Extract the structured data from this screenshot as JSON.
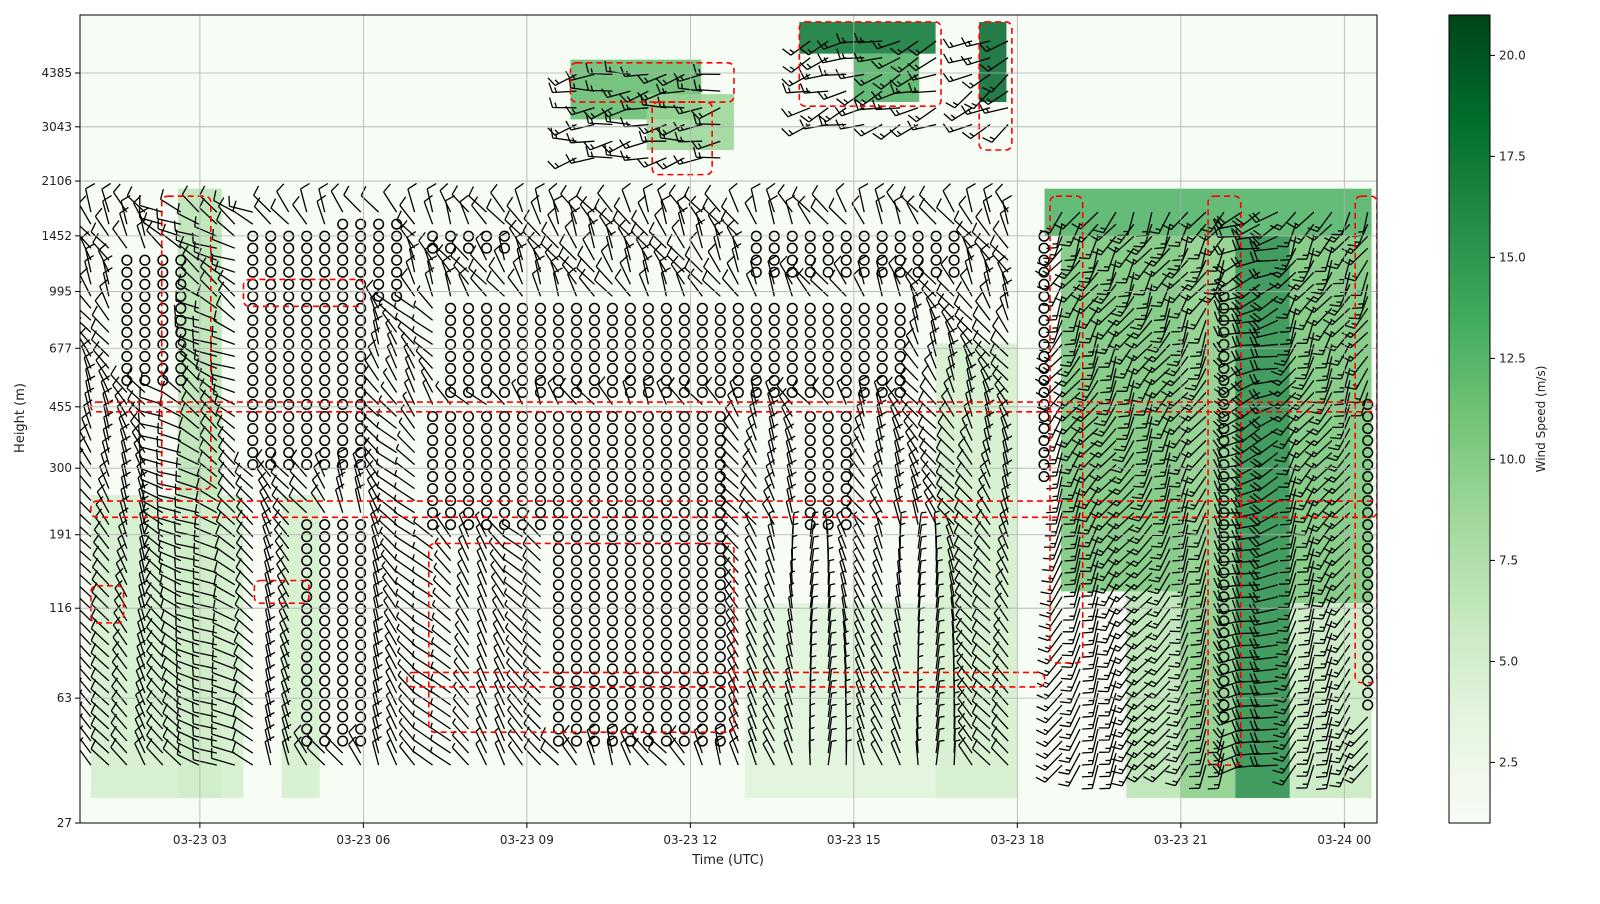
{
  "chart_data": {
    "type": "heatmap",
    "title": "",
    "xlabel": "Time (UTC)",
    "ylabel": "Height (m)",
    "colorbar_label": "Wind Speed (m/s)",
    "colormap": "Greens",
    "colors": {
      "low": "#f7fcf5",
      "high": "#00441b",
      "contour": "#ff0000",
      "barb": "#000000"
    },
    "grid": true,
    "x_range_hours": [
      0.8,
      24.6
    ],
    "x_ticks": [
      {
        "hours": 3,
        "label": "03-23 03"
      },
      {
        "hours": 6,
        "label": "03-23 06"
      },
      {
        "hours": 9,
        "label": "03-23 09"
      },
      {
        "hours": 12,
        "label": "03-23 12"
      },
      {
        "hours": 15,
        "label": "03-23 15"
      },
      {
        "hours": 18,
        "label": "03-23 18"
      },
      {
        "hours": 21,
        "label": "03-23 21"
      },
      {
        "hours": 24,
        "label": "03-24 00"
      }
    ],
    "y_scale": "log",
    "y_range": [
      27,
      6500
    ],
    "y_ticks": [
      27,
      63,
      116,
      191,
      300,
      455,
      677,
      995,
      1452,
      2106,
      3043,
      4385
    ],
    "colorbar_range": [
      1,
      21
    ],
    "colorbar_ticks": [
      2.5,
      5.0,
      7.5,
      10.0,
      12.5,
      15.0,
      17.5,
      20.0
    ],
    "colorbar_tick_labels": [
      "2.5",
      "5.0",
      "7.5",
      "10.0",
      "12.5",
      "15.0",
      "17.5",
      "20.0"
    ],
    "speed_regions": [
      {
        "t0": 2.6,
        "t1": 3.4,
        "h0": 32,
        "h1": 2000,
        "speed": 7
      },
      {
        "t0": 1.0,
        "t1": 3.8,
        "h0": 32,
        "h1": 250,
        "speed": 5
      },
      {
        "t0": 4.5,
        "t1": 5.2,
        "h0": 32,
        "h1": 250,
        "speed": 5
      },
      {
        "t0": 9.8,
        "t1": 12.2,
        "h0": 3200,
        "h1": 4800,
        "speed": 12
      },
      {
        "t0": 11.2,
        "t1": 12.8,
        "h0": 2600,
        "h1": 3800,
        "speed": 9
      },
      {
        "t0": 14.0,
        "t1": 16.5,
        "h0": 5000,
        "h1": 6200,
        "speed": 18
      },
      {
        "t0": 15.0,
        "t1": 16.2,
        "h0": 3600,
        "h1": 5000,
        "speed": 13
      },
      {
        "t0": 17.3,
        "t1": 17.8,
        "h0": 3600,
        "h1": 6200,
        "speed": 19
      },
      {
        "t0": 16.5,
        "t1": 18.0,
        "h0": 32,
        "h1": 700,
        "speed": 5
      },
      {
        "t0": 13.0,
        "t1": 16.5,
        "h0": 32,
        "h1": 120,
        "speed": 4
      },
      {
        "t0": 18.5,
        "t1": 24.5,
        "h0": 1450,
        "h1": 2000,
        "speed": 13
      },
      {
        "t0": 18.8,
        "t1": 21.0,
        "h0": 130,
        "h1": 1450,
        "speed": 11
      },
      {
        "t0": 20.0,
        "t1": 21.0,
        "h0": 32,
        "h1": 130,
        "speed": 7
      },
      {
        "t0": 21.0,
        "t1": 22.0,
        "h0": 32,
        "h1": 1450,
        "speed": 10
      },
      {
        "t0": 22.0,
        "t1": 23.0,
        "h0": 32,
        "h1": 1450,
        "speed": 16
      },
      {
        "t0": 23.0,
        "t1": 24.5,
        "h0": 120,
        "h1": 1450,
        "speed": 11
      },
      {
        "t0": 23.0,
        "t1": 24.5,
        "h0": 32,
        "h1": 120,
        "speed": 6
      }
    ],
    "calm_regions": [
      {
        "t0": 1.5,
        "t1": 2.7,
        "h0": 530,
        "h1": 1250
      },
      {
        "t0": 3.8,
        "t1": 6.0,
        "h0": 300,
        "h1": 1550
      },
      {
        "t0": 5.5,
        "t1": 6.7,
        "h0": 900,
        "h1": 1700
      },
      {
        "t0": 7.2,
        "t1": 8.8,
        "h0": 1250,
        "h1": 1550
      },
      {
        "t0": 4.7,
        "t1": 6.0,
        "h0": 45,
        "h1": 220
      },
      {
        "t0": 7.2,
        "t1": 12.8,
        "h0": 195,
        "h1": 460
      },
      {
        "t0": 7.5,
        "t1": 16.0,
        "h0": 470,
        "h1": 900
      },
      {
        "t0": 9.5,
        "t1": 12.8,
        "h0": 45,
        "h1": 190
      },
      {
        "t0": 13.0,
        "t1": 17.0,
        "h0": 1050,
        "h1": 1550
      },
      {
        "t0": 14.0,
        "t1": 15.0,
        "h0": 190,
        "h1": 460
      },
      {
        "t0": 18.2,
        "t1": 18.6,
        "h0": 280,
        "h1": 1500
      },
      {
        "t0": 21.6,
        "t1": 22.0,
        "h0": 55,
        "h1": 1000
      },
      {
        "t0": 24.2,
        "t1": 24.6,
        "h0": 60,
        "h1": 500
      }
    ],
    "barb_fields": [
      {
        "t0": 1.0,
        "t1": 18.0,
        "h0": 32,
        "h1": 1900,
        "dir": 330,
        "speed": 10
      },
      {
        "t0": 2.2,
        "t1": 4.0,
        "h0": 32,
        "h1": 1900,
        "dir": 300,
        "speed": 12
      },
      {
        "t0": 6.5,
        "t1": 9.0,
        "h0": 32,
        "h1": 900,
        "dir": 320,
        "speed": 5
      },
      {
        "t0": 13.0,
        "t1": 17.0,
        "h0": 32,
        "h1": 200,
        "dir": 350,
        "speed": 5
      },
      {
        "t0": 18.6,
        "t1": 24.5,
        "h0": 32,
        "h1": 1900,
        "dir": 210,
        "speed": 15
      },
      {
        "t0": 22.0,
        "t1": 23.0,
        "h0": 32,
        "h1": 1900,
        "dir": 250,
        "speed": 22
      },
      {
        "t0": 9.8,
        "t1": 12.8,
        "h0": 2400,
        "h1": 4700,
        "dir": 260,
        "speed": 15
      },
      {
        "t0": 14.0,
        "t1": 16.6,
        "h0": 3000,
        "h1": 6000,
        "dir": 250,
        "speed": 18
      },
      {
        "t0": 17.0,
        "t1": 17.9,
        "h0": 3000,
        "h1": 6000,
        "dir": 240,
        "speed": 15
      }
    ],
    "contour_boxes": [
      {
        "t0": 1.0,
        "t1": 24.6,
        "h0": 440,
        "h1": 470
      },
      {
        "t0": 1.0,
        "t1": 24.6,
        "h0": 215,
        "h1": 240
      },
      {
        "t0": 6.8,
        "t1": 18.5,
        "h0": 68,
        "h1": 75
      },
      {
        "t0": 1.0,
        "t1": 1.6,
        "h0": 105,
        "h1": 135
      },
      {
        "t0": 4.0,
        "t1": 5.0,
        "h0": 120,
        "h1": 140
      },
      {
        "t0": 7.2,
        "t1": 12.8,
        "h0": 50,
        "h1": 180
      },
      {
        "t0": 3.8,
        "t1": 6.0,
        "h0": 900,
        "h1": 1080
      },
      {
        "t0": 2.3,
        "t1": 3.2,
        "h0": 260,
        "h1": 1900
      },
      {
        "t0": 18.6,
        "t1": 19.2,
        "h0": 80,
        "h1": 1900
      },
      {
        "t0": 21.5,
        "t1": 22.1,
        "h0": 40,
        "h1": 1900
      },
      {
        "t0": 24.2,
        "t1": 24.6,
        "h0": 70,
        "h1": 1900
      },
      {
        "t0": 9.8,
        "t1": 12.8,
        "h0": 3600,
        "h1": 4700
      },
      {
        "t0": 14.0,
        "t1": 16.6,
        "h0": 3500,
        "h1": 6200
      },
      {
        "t0": 17.3,
        "t1": 17.9,
        "h0": 2600,
        "h1": 6200
      },
      {
        "t0": 11.3,
        "t1": 12.4,
        "h0": 2200,
        "h1": 3600
      }
    ]
  }
}
